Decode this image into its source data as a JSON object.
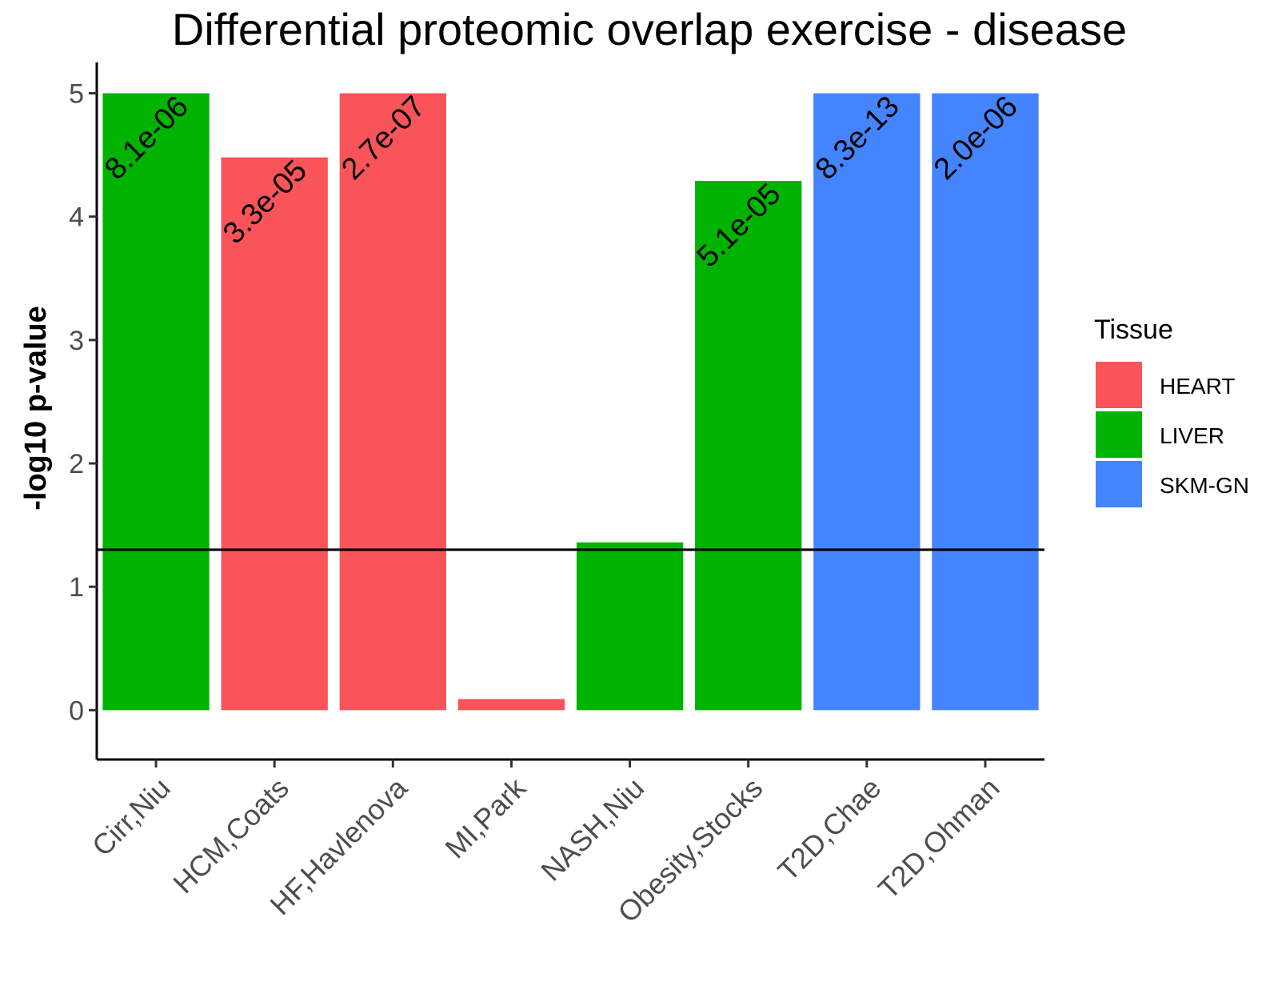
{
  "chart_data": {
    "type": "bar",
    "title": "Differential proteomic overlap exercise - disease",
    "xlabel": "",
    "ylabel": "-log10 p-value",
    "ylim": [
      -0.4,
      5.25
    ],
    "yticks": [
      0,
      1,
      2,
      3,
      4,
      5
    ],
    "categories": [
      "Cirr,Niu",
      "HCM,Coats",
      "HF,Havlenova",
      "MI,Park",
      "NASH,Niu",
      "Obesity,Stocks",
      "T2D,Chae",
      "T2D,Ohman"
    ],
    "values": [
      5.0,
      4.48,
      5.0,
      0.09,
      1.36,
      4.29,
      5.0,
      5.0
    ],
    "tissue": [
      "LIVER",
      "HEART",
      "HEART",
      "HEART",
      "LIVER",
      "LIVER",
      "SKM-GN",
      "SKM-GN"
    ],
    "bar_labels": [
      "8.1e-06",
      "3.3e-05",
      "2.7e-07",
      "",
      "",
      "5.1e-05",
      "8.3e-13",
      "2.0e-06"
    ],
    "reference_line": 1.3,
    "legend": {
      "title": "Tissue",
      "position": "right",
      "entries": [
        {
          "label": "HEART",
          "color": "#F8545A"
        },
        {
          "label": "LIVER",
          "color": "#00B300"
        },
        {
          "label": "SKM-GN",
          "color": "#4485FF"
        }
      ]
    },
    "grid": false
  }
}
